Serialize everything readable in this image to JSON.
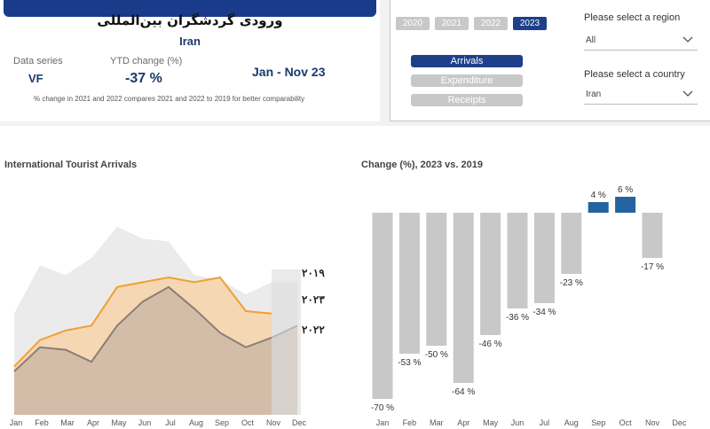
{
  "header": {
    "title": "ورودی گردشگران بین‌المللی",
    "country": "Iran",
    "data_series_label": "Data series",
    "data_series_value": "VF",
    "ytd_label": "YTD change (%)",
    "ytd_value": "-37 %",
    "period": "Jan - Nov 23",
    "footnote": "% change in 2021 and 2022 compares 2021 and 2022  to 2019 for better comparability",
    "banner_color": "#1a3a8a"
  },
  "filters": {
    "years": [
      {
        "label": "2020",
        "active": false
      },
      {
        "label": "2021",
        "active": false
      },
      {
        "label": "2022",
        "active": false
      },
      {
        "label": "2023",
        "active": true
      }
    ],
    "series_buttons": [
      {
        "label": "Arrivals",
        "active": true
      },
      {
        "label": "Expenditure",
        "active": false
      },
      {
        "label": "Receipts",
        "active": false
      }
    ],
    "region_label": "Please select a region",
    "region_value": "All",
    "country_label": "Please select a country",
    "country_value": "Iran",
    "chevron_icon": "chevron-down-icon"
  },
  "chart_data": [
    {
      "type": "area",
      "title": "International Tourist Arrivals",
      "categories": [
        "Jan",
        "Feb",
        "Mar",
        "Apr",
        "May",
        "Jun",
        "Jul",
        "Aug",
        "Sep",
        "Oct",
        "Nov",
        "Dec"
      ],
      "ylim": [
        0,
        100
      ],
      "series": [
        {
          "name": "۲۰۱۹",
          "color": "#ebebeb",
          "values": [
            42,
            62,
            58,
            65,
            78,
            73,
            72,
            58,
            56,
            50,
            55,
            55
          ]
        },
        {
          "name": "۲۰۲۳",
          "color": "#f0a030",
          "values": [
            20,
            31,
            35,
            37,
            53,
            55,
            57,
            55,
            57,
            43,
            42,
            null
          ]
        },
        {
          "name": "۲۰۲۲",
          "color": "#8a7e74",
          "values": [
            18,
            28,
            27,
            22,
            37,
            47,
            53,
            44,
            34,
            28,
            32,
            37
          ]
        }
      ]
    },
    {
      "type": "bar",
      "title": "Change (%), 2023 vs. 2019",
      "categories": [
        "Jan",
        "Feb",
        "Mar",
        "Apr",
        "May",
        "Jun",
        "Jul",
        "Aug",
        "Sep",
        "Oct",
        "Nov",
        "Dec"
      ],
      "values": [
        -70,
        -53,
        -50,
        -64,
        -46,
        -36,
        -34,
        -23,
        4,
        6,
        -17,
        null
      ],
      "labels": [
        "-70 %",
        "-53 %",
        "-50 %",
        "-64 %",
        "-46 %",
        "-36 %",
        "-34 %",
        "-23 %",
        "4 %",
        "6 %",
        "-17 %",
        ""
      ],
      "negative_color": "#c8c8c8",
      "positive_color": "#2364a0"
    }
  ]
}
